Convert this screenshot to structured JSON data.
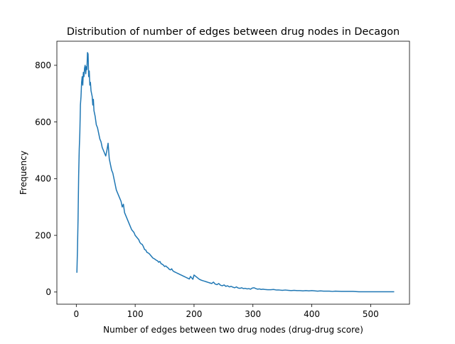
{
  "chart_data": {
    "type": "line",
    "title": "Distribution of number of edges between drug nodes in Decagon",
    "xlabel": "Number of edges between two drug nodes (drug-drug score)",
    "ylabel": "Frequency",
    "xlim": [
      -33,
      566
    ],
    "ylim": [
      -43,
      885
    ],
    "xticks": [
      0,
      100,
      200,
      300,
      400,
      500
    ],
    "yticks": [
      0,
      200,
      400,
      600,
      800
    ],
    "grid": false,
    "series": [
      {
        "color": "#1f77b4",
        "x": [
          1,
          2,
          3,
          4,
          5,
          6,
          7,
          8,
          9,
          10,
          11,
          12,
          13,
          14,
          15,
          16,
          17,
          18,
          19,
          20,
          21,
          22,
          23,
          24,
          25,
          26,
          27,
          28,
          29,
          30,
          32,
          34,
          36,
          38,
          40,
          42,
          44,
          46,
          48,
          50,
          52,
          54,
          56,
          58,
          60,
          62,
          64,
          66,
          68,
          70,
          72,
          74,
          76,
          78,
          80,
          82,
          84,
          86,
          88,
          90,
          92,
          94,
          96,
          98,
          100,
          102,
          104,
          106,
          108,
          110,
          112,
          114,
          116,
          118,
          120,
          122,
          124,
          126,
          128,
          130,
          132,
          134,
          136,
          138,
          140,
          142,
          144,
          146,
          148,
          150,
          152,
          154,
          156,
          158,
          160,
          162,
          164,
          166,
          168,
          170,
          172,
          174,
          176,
          178,
          180,
          182,
          184,
          186,
          188,
          190,
          192,
          194,
          196,
          198,
          200,
          203,
          206,
          209,
          212,
          215,
          218,
          221,
          224,
          227,
          230,
          233,
          236,
          239,
          242,
          245,
          248,
          251,
          254,
          257,
          260,
          263,
          266,
          269,
          272,
          275,
          278,
          281,
          284,
          287,
          290,
          293,
          296,
          299,
          302,
          305,
          308,
          311,
          314,
          317,
          320,
          325,
          330,
          335,
          340,
          345,
          350,
          355,
          360,
          365,
          370,
          375,
          380,
          385,
          390,
          395,
          400,
          405,
          410,
          415,
          420,
          425,
          430,
          435,
          440,
          450,
          460,
          470,
          480,
          490,
          500,
          510,
          520,
          530,
          540
        ],
        "y": [
          68,
          150,
          260,
          410,
          505,
          560,
          660,
          690,
          740,
          760,
          730,
          775,
          760,
          790,
          800,
          770,
          795,
          785,
          845,
          840,
          760,
          780,
          730,
          740,
          710,
          700,
          690,
          660,
          680,
          640,
          620,
          590,
          580,
          560,
          540,
          530,
          510,
          500,
          490,
          480,
          500,
          525,
          470,
          450,
          430,
          420,
          400,
          380,
          360,
          350,
          340,
          330,
          320,
          300,
          310,
          280,
          270,
          260,
          250,
          240,
          230,
          220,
          215,
          210,
          200,
          195,
          190,
          185,
          175,
          170,
          168,
          160,
          150,
          148,
          140,
          138,
          135,
          130,
          125,
          120,
          118,
          115,
          112,
          110,
          105,
          108,
          100,
          98,
          95,
          90,
          92,
          88,
          85,
          80,
          78,
          82,
          75,
          72,
          70,
          68,
          66,
          64,
          62,
          60,
          58,
          56,
          54,
          52,
          50,
          48,
          46,
          55,
          50,
          45,
          60,
          55,
          50,
          45,
          42,
          40,
          38,
          36,
          34,
          32,
          30,
          35,
          28,
          26,
          30,
          24,
          22,
          25,
          20,
          22,
          18,
          20,
          17,
          15,
          18,
          14,
          13,
          15,
          12,
          13,
          11,
          12,
          10,
          14,
          15,
          12,
          10,
          11,
          9,
          10,
          9,
          8,
          8,
          9,
          7,
          7,
          6,
          7,
          6,
          5,
          6,
          5,
          5,
          4,
          5,
          4,
          5,
          4,
          3,
          4,
          3,
          3,
          3,
          2,
          3,
          2,
          2,
          2,
          1,
          1,
          1,
          1,
          1,
          1,
          1
        ]
      }
    ]
  }
}
